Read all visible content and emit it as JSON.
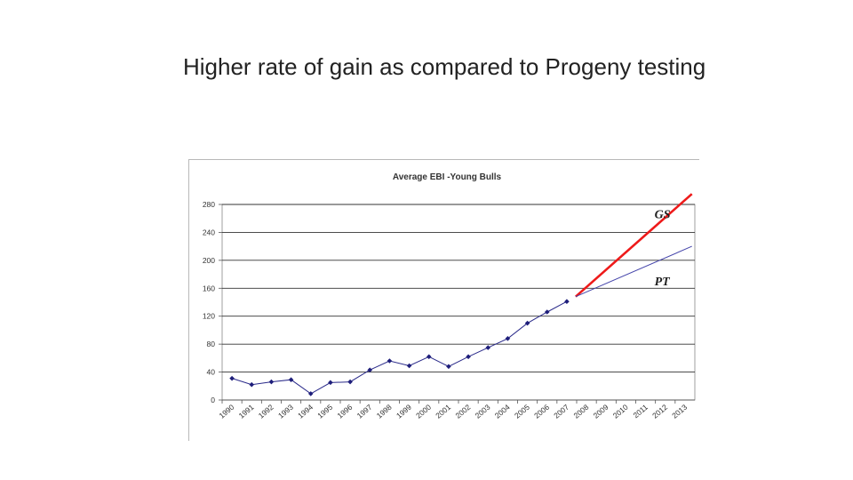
{
  "slide": {
    "title": "Higher rate of gain as compared to Progeny testing"
  },
  "chart_data": {
    "type": "line",
    "title": "Average EBI -Young Bulls",
    "categories": [
      "1990",
      "1991",
      "1992",
      "1993",
      "1994",
      "1995",
      "1996",
      "1997",
      "1998",
      "1999",
      "2000",
      "2001",
      "2002",
      "2003",
      "2004",
      "2005",
      "2006",
      "2007",
      "2008",
      "2009",
      "2010",
      "2011",
      "2012",
      "2013"
    ],
    "ylim": [
      0,
      280
    ],
    "yticks": [
      0,
      40,
      80,
      120,
      160,
      200,
      240,
      280
    ],
    "grid": true,
    "series": [
      {
        "key": "observed",
        "color": "#2a2a8a",
        "marker": "diamond",
        "points": [
          {
            "x": "1990",
            "y": 31
          },
          {
            "x": "1991",
            "y": 22
          },
          {
            "x": "1992",
            "y": 26
          },
          {
            "x": "1993",
            "y": 29
          },
          {
            "x": "1994",
            "y": 9
          },
          {
            "x": "1995",
            "y": 25
          },
          {
            "x": "1996",
            "y": 26
          },
          {
            "x": "1997",
            "y": 43
          },
          {
            "x": "1998",
            "y": 56
          },
          {
            "x": "1999",
            "y": 49
          },
          {
            "x": "2000",
            "y": 62
          },
          {
            "x": "2001",
            "y": 48
          },
          {
            "x": "2002",
            "y": 62
          },
          {
            "x": "2003",
            "y": 75
          },
          {
            "x": "2004",
            "y": 88
          },
          {
            "x": "2005",
            "y": 110
          },
          {
            "x": "2006",
            "y": 126
          },
          {
            "x": "2007",
            "y": 141
          }
        ]
      },
      {
        "key": "gs",
        "name": "GS",
        "color": "#ee1a1a",
        "marker": "none",
        "points": [
          {
            "x": "2008",
            "y": 148
          },
          {
            "x": "2013",
            "y": 295
          }
        ]
      },
      {
        "key": "pt",
        "name": "PT",
        "color": "#4444aa",
        "marker": "none",
        "points": [
          {
            "x": "2008",
            "y": 148
          },
          {
            "x": "2013",
            "y": 220
          }
        ]
      }
    ],
    "annotations": [
      {
        "text": "GS",
        "series": "gs",
        "x": "2011",
        "y": 260
      },
      {
        "text": "PT",
        "series": "pt",
        "x": "2011",
        "y": 164
      }
    ]
  }
}
